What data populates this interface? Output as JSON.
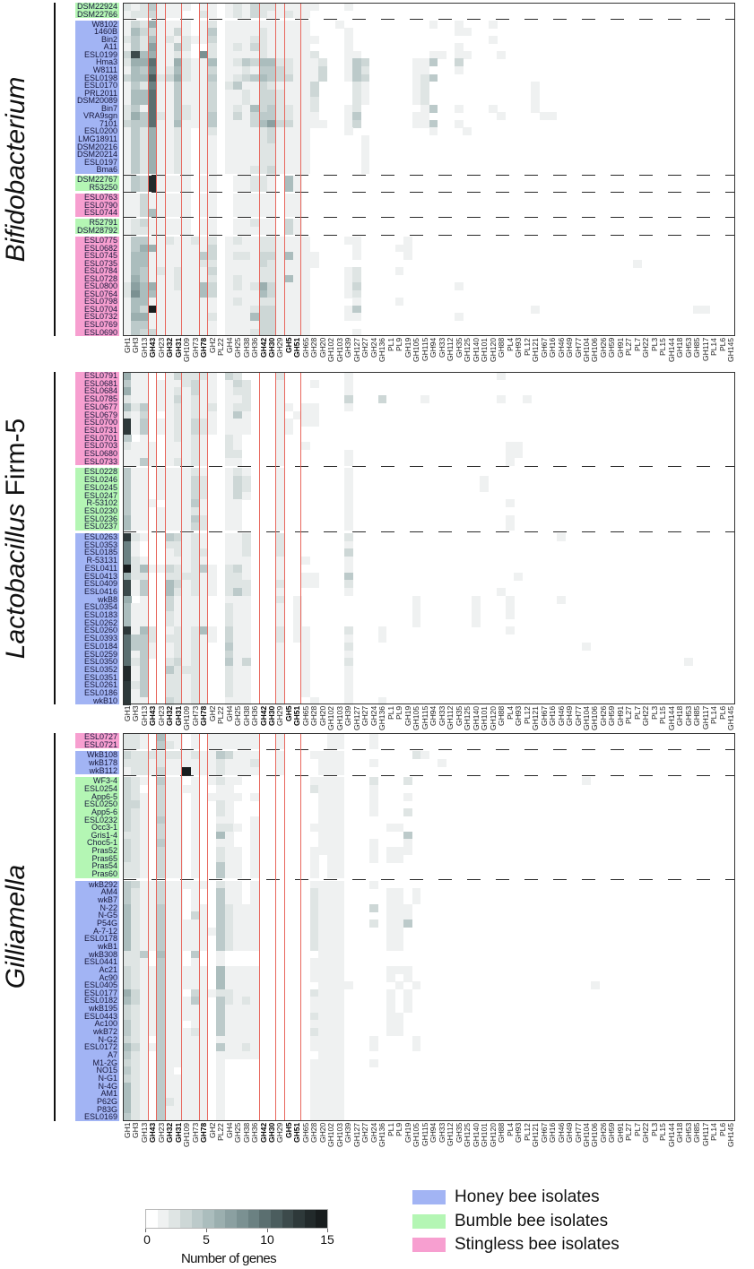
{
  "host_colors": {
    "honey": "#a2b4f4",
    "bumble": "#b4f6b4",
    "stingless": "#f79fd0"
  },
  "legend": {
    "items": [
      {
        "label": "Honey bee isolates",
        "color": "#a2b4f4"
      },
      {
        "label": "Bumble bee isolates",
        "color": "#b4f6b4"
      },
      {
        "label": "Stingless bee isolates",
        "color": "#f79fd0"
      }
    ]
  },
  "colorbar": {
    "label": "Number of genes",
    "ticks": [
      "0",
      "5",
      "10",
      "15"
    ],
    "range": [
      0,
      15
    ],
    "colors": [
      "#ffffff",
      "#eff1f1",
      "#dfe5e4",
      "#cdd7d6",
      "#bccaca",
      "#abbdbd",
      "#9bafaf",
      "#8ba0a1",
      "#7b9192",
      "#6b8182",
      "#5b6f70",
      "#4b5d5e",
      "#3c4a4b",
      "#2e393a",
      "#222a2b",
      "#181d1e"
    ]
  },
  "chart_data": {
    "type": "heatmap",
    "title": "",
    "xlabel": "",
    "ylabel": "",
    "value_range": [
      0,
      15
    ],
    "colorbar_label": "Number of genes",
    "value_encoding": "one hex digit per column (0-f = 0-15 genes); missing trailing columns = 0",
    "columns": [
      "GH1",
      "GH3",
      "GH13",
      "GH43",
      "GH23",
      "GH32",
      "GH31",
      "GH109",
      "GH73",
      "GH78",
      "GH2",
      "PL22",
      "GH4",
      "GH25",
      "GH38",
      "GH36",
      "GH42",
      "GH30",
      "GH29",
      "GH5",
      "GH51",
      "GH65",
      "GH28",
      "GH20",
      "GH102",
      "GH103",
      "GH39",
      "GH127",
      "GH27",
      "GH24",
      "GH136",
      "PL1",
      "PL9",
      "GH19",
      "GH105",
      "GH115",
      "GH94",
      "GH33",
      "GH112",
      "GH35",
      "GH125",
      "GH140",
      "GH101",
      "GH120",
      "GH88",
      "PL4",
      "GH93",
      "PL12",
      "GH121",
      "GH67",
      "GH16",
      "GH46",
      "GH49",
      "GH77",
      "GH104",
      "GH106",
      "GH26",
      "GH59",
      "GH91",
      "PL27",
      "PL7",
      "GH22",
      "PL3",
      "PL15",
      "GH144",
      "GH18",
      "GH53",
      "GH85",
      "GH117",
      "PL14",
      "PL6",
      "GH145"
    ],
    "bold_columns": [
      "GH43",
      "GH32",
      "GH31",
      "GH78",
      "GH42",
      "GH30",
      "GH5",
      "GH51"
    ],
    "highlight_boxes": [
      [
        "GH43",
        "GH43"
      ],
      [
        "GH32",
        "GH31"
      ],
      [
        "GH78",
        "GH78"
      ],
      [
        "GH42",
        "GH30"
      ],
      [
        "GH5",
        "GH51"
      ]
    ],
    "legend_position": "bottom",
    "panels": [
      {
        "name": "Bifidobacterium",
        "title_italic": "Bifidobacterium",
        "title_suffix": "",
        "groups": [
          {
            "host": "bumble",
            "rows": [
              [
                "DSM22924",
                "212411110110121322111110001000000000"
              ],
              [
                "DSM22766",
                "122311100210121321121100000000000000"
              ]
            ]
          },
          {
            "host": "honey",
            "rows": [
              [
                "W8102",
                "13261111012011111111110001000000000010010001"
              ],
              [
                "1460B",
                "15331131014011112111110000100000000000011"
              ],
              [
                "Bin2",
                "24251212113011122111111000100000000000000001"
              ],
              [
                "A11",
                "1427114200201213211111000010000000000001"
              ],
              [
                "ESL0199",
                "3c5611210820111121111120001100000000110110001"
              ],
              [
                "Hma3",
                "266a116211501243552211120014300000114003"
              ],
              [
                "W8111",
                "1549125211301121443211130014200000110001"
              ],
              [
                "ESL0198",
                "355b236211401234543311130014300000124"
              ],
              [
                "ESL0170",
                "1429114111302411321111300002100000120000000000001"
              ],
              [
                "PRL2011",
                "155a114111301121332111300002100000120000000000001"
              ],
              [
                "DSM20089",
                "155a114111301121332111200002100000120000000000001"
              ],
              [
                "Bin7",
                "241a114211301215342211200012000000014001000100001"
              ],
              [
                "VRA9sgn",
                "264a21421140131344221110001400000011000000001000011"
              ],
              [
                "7101",
                "344a115111401113573311110013000000114001"
              ],
              [
                "ESL0200",
                "14261121012011112311110000100000000010001"
              ],
              [
                "LMG18911",
                "14261121011011112311110000001"
              ],
              [
                "DSM20216",
                "14261121011011112211110000001"
              ],
              [
                "DSM20214",
                "14261121011011112211110000001"
              ],
              [
                "ESL0197",
                "14261121011011112211110000001"
              ],
              [
                "Bma6",
                "14261121011011122311110000001"
              ]
            ]
          },
          {
            "host": "bumble",
            "rows": [
              [
                "DSM22767",
                "143e11110110011221051"
              ],
              [
                "R53250",
                "143e11110110011221051"
              ]
            ]
          },
          {
            "host": "stingless",
            "rows": [
              [
                "ESL0763",
                "113111110110011111011"
              ],
              [
                "ESL0790",
                "113111110110011111011"
              ],
              [
                "ESL0744",
                "113511110110011111011"
              ]
            ]
          },
          {
            "host": "bumble",
            "rows": [
              [
                "R52791",
                "123111110110011211031"
              ],
              [
                "DSM28792",
                "122111110110011111031"
              ]
            ]
          },
          {
            "host": "stingless",
            "rows": [
              [
                "ESL0775",
                "1441121121201211221111000011000001"
              ],
              [
                "ESL0682",
                "1466111111301111221111000001000011"
              ],
              [
                "ESL0745",
                "1551111114301221331511100001000001"
              ],
              [
                "ESL0735",
                "1551111112201111321111100000000000000000000000000000000000001"
              ],
              [
                "ESL0784",
                "154121211130111122111100001200001"
              ],
              [
                "ESL0728",
                "1641112111201211221511000012"
              ],
              [
                "ESL0800",
                "2756112115301212631111000013000000000001"
              ],
              [
                "ESL0764",
                "2855111115301111531111000012"
              ],
              [
                "ESL0798",
                "155111111110121122111100000100001"
              ],
              [
                "ESL0704",
                "153f11111110111233111100001400000000000000000000100000000000000000011"
              ],
              [
                "ESL0732",
                "1661111111201115331111000011000000000001"
              ],
              [
                "ESL0769",
                "1441111111101111331111"
              ],
              [
                "ESL0690",
                "1433111111101112331111000001"
              ]
            ]
          }
        ]
      },
      {
        "name": "Lactobacillus Firm-5",
        "title_italic": "Lactobacillus",
        "title_suffix": " Firm-5",
        "groups": [
          {
            "host": "stingless",
            "rows": [
              [
                "ESL0791",
                "611001322210320000200000001000000000000000001"
              ],
              [
                "ESL0681",
                "411011123110132000100010001"
              ],
              [
                "ESL0684",
                "611011213110122000100000001"
              ],
              [
                "ESL0785",
                "211011312110112000100000003000300001000000001001"
              ],
              [
                "ESL0677",
                "524011212120122000110110001"
              ],
              [
                "ESL0679",
                "21300121211014100010111"
              ],
              [
                "ESL0700",
                "d1401121321011100011011"
              ],
              [
                "ESL0731",
                "d14011213210111000110"
              ],
              [
                "ESL0701",
                "401001212100210000100"
              ],
              [
                "ESL0703",
                "21110111210021000010010000000000000000000000011"
              ],
              [
                "ESL0680",
                "11110111210022000010000000100000000000000000011"
              ],
              [
                "ESL0733",
                "1141012121001100001000000010000000000000000001"
              ]
            ]
          },
          {
            "host": "bumble",
            "rows": [
              [
                "ESL0228",
                "411011112100121000100000001"
              ],
              [
                "ESL0246",
                "4110111132001320001000000010000000000000001"
              ],
              [
                "ESL0245",
                "4110111132001320001000000010000000000000001"
              ],
              [
                "ESL0247",
                "411011113200131000100000001"
              ],
              [
                "R-53102",
                "4111011141001100001000000010000000000000000001"
              ],
              [
                "ESL0230",
                "411011112100110000100000001"
              ],
              [
                "ESL0236",
                "5110111142001100001000000010000000000000000001"
              ],
              [
                "ESL0237",
                "5110111132001100001000000010000000000000000001"
              ]
            ]
          },
          {
            "host": "honey",
            "rows": [
              [
                "ESL0263",
                "d210043121001120002000000020000000000000000000000001"
              ],
              [
                "ESL0353",
                "910002212100112000200000001"
              ],
              [
                "ESL0185",
                "910001212200112000200000003"
              ],
              [
                "R-53131",
                "921001112100111000100100001"
              ],
              [
                "ESL0411",
                "f25113212410231000100000001"
              ],
              [
                "ESL0413",
                "62200222211022100010011000400000000000000000001"
              ],
              [
                "ESL0409",
                "c14005312110222000200110002"
              ],
              [
                "ESL0416",
                "c14005212110242000100000001000000000000000001"
              ],
              [
                "wkB8",
                "6010031111001110002010000000000000100000010001000001"
              ],
              [
                "ESL0354",
                "5110031111002110001010000000000000100000010001"
              ],
              [
                "ESL0183",
                "5110021111002110001010000000000000100000010001"
              ],
              [
                "ESL0262",
                "511002111100211000101000000000000010000001"
              ],
              [
                "ESL0260",
                "d152012125103110002011000020001000000000000001"
              ],
              [
                "ESL0393",
                "a442022121103110002011000010001"
              ],
              [
                "ESL0184",
                "a441012121004110001001000020000000000000000000000000001"
              ],
              [
                "ESL0259",
                "a14101212100311000100100001"
              ],
              [
                "ESL0350",
                "a240023121004130001001000020000000000000000000000000000000000000001"
              ],
              [
                "ESL0352",
                "e14004222100211000100100001"
              ],
              [
                "ESL0351",
                "e14002212100211000100100001"
              ],
              [
                "ESL0261",
                "d24002212100211000100100001"
              ],
              [
                "ESL0186",
                "d14002212100211000100100001"
              ],
              [
                "wkB10",
                "d110032121001110001000100010001"
              ]
            ]
          }
        ]
      },
      {
        "name": "Gilliamella",
        "title_italic": "Gilliamella",
        "title_suffix": "",
        "groups": [
          {
            "host": "stingless",
            "rows": [
              [
                "ESL0727",
                "221051101011111100100000110001"
              ],
              [
                "ESL0721",
                "221042101011111100100000110001"
              ]
            ]
          },
          {
            "host": "honey",
            "rows": [
              [
                "WkB108",
                "322222212114311100100011110000000021"
              ],
              [
                "wkB178",
                "22212111111211120010000111000100000001"
              ],
              [
                "wkB112",
                "1221311f111211110010000111"
              ]
            ]
          },
          {
            "host": "bumble",
            "rows": [
              [
                "WF3-4",
                "3210411010121100000000111100020002000000000000000000001"
              ],
              [
                "ESL0254",
                "320031111001100000000021110001"
              ],
              [
                "App6-5",
                "3210311010111101000000011100010001"
              ],
              [
                "ESL0250",
                "331031101002100000000001110001"
              ],
              [
                "App5-6",
                "3210311010021000000000011100010002"
              ],
              [
                "ESL0232",
                "32104110100110010000000111"
              ],
              [
                "Occ3-1",
                "321031101002210100000011110000011"
              ],
              [
                "Gris1-4",
                "2210311010051001000000011100000004"
              ],
              [
                "Choc5-1",
                "3210411010011001000000011100010001"
              ],
              [
                "Pras52",
                "3210311010021101000000111100010111"
              ],
              [
                "Pras65",
                "321031101002110100000010110001011"
              ],
              [
                "Pras54",
                "22103110100411010000001011"
              ],
              [
                "Pras60",
                "22103110100411010000001011"
              ]
            ]
          },
          {
            "host": "honey",
            "rows": [
              [
                "wkB292",
                "431131111102110100000011110001"
              ],
              [
                "AM4",
                "42113110100411010000002111000001101"
              ],
              [
                "wkB7",
                "42113110100411010000002111000001101"
              ],
              [
                "N-22",
                "5211411011042111000000211100030111"
              ],
              [
                "N-G5",
                "5211411031042111000000211100000111"
              ],
              [
                "P54G",
                "5211411111042111000000211100020114"
              ],
              [
                "A-7-12",
                "521141111114211100000021110000011"
              ],
              [
                "ESL0178",
                "521141111104211100000021110000011"
              ],
              [
                "wkB1",
                "521141111104211100000021110000011"
              ],
              [
                "wkB308",
                "22405110400100000000000111"
              ],
              [
                "ESL0441",
                "22104110100100000000001111"
              ],
              [
                "Ac21",
                "3211411111051111000000111100000111"
              ],
              [
                "Ac90",
                "3211411111051111000000111100000101"
              ],
              [
                "ESL0405",
                "32114111110511110000000111100000101000000000000000000001"
              ],
              [
                "ESL0177",
                "6311411031122111000000211100000101"
              ],
              [
                "ESL0182",
                "5311411141042121000000111100000101"
              ],
              [
                "wkB195",
                "3211411111041111000000111100000101"
              ],
              [
                "ESL0443",
                "321141111104111100000021110000011"
              ],
              [
                "Ac100",
                "421141101104111100000011110000011"
              ],
              [
                "wkB72",
                "421141112104111100000021110000011"
              ],
              [
                "N-G2",
                "32104111110111110000001111000100001"
              ],
              [
                "ESL0172",
                "53114111110411210000001111000100001"
              ],
              [
                "A7",
                "42104111110111110000000111"
              ],
              [
                "M1-2G",
                "321041111101000000000011110001"
              ],
              [
                "NO15",
                "42104101110100000000001111"
              ],
              [
                "N-G1",
                "32104111110100000000001111"
              ],
              [
                "N-4G",
                "52104111110100000000001111"
              ],
              [
                "AM1",
                "52104111110100000000001111"
              ],
              [
                "P62G",
                "52104211110100000000001111"
              ],
              [
                "P83G",
                "52104111110100000000001111"
              ],
              [
                "ESL0169",
                "42104111110100000000001111"
              ]
            ]
          }
        ]
      }
    ]
  }
}
